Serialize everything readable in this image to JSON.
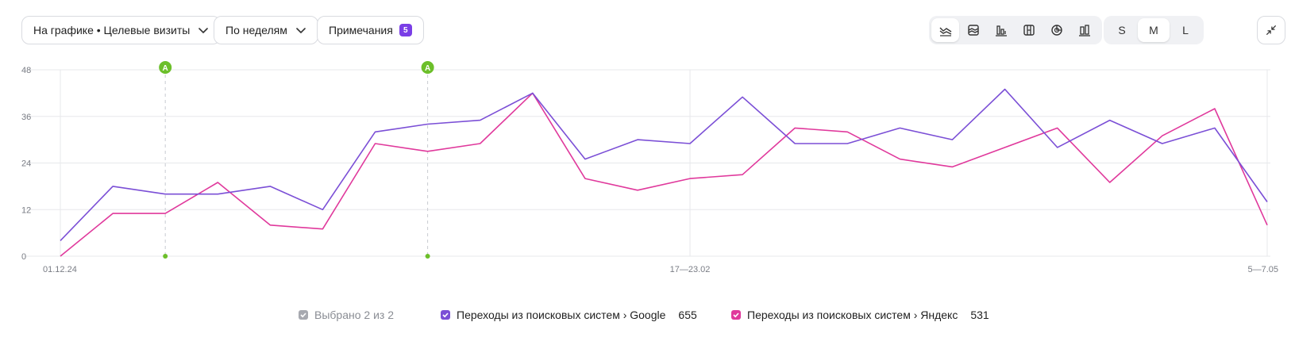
{
  "toolbar": {
    "metric_select": "На графике • Целевые визиты",
    "period_select": "По неделям",
    "notes_label": "Примечания",
    "notes_count": "5",
    "chart_types": [
      "lines-icon",
      "stacked-area-icon",
      "bar-chart-icon",
      "stacked-bar-icon",
      "pie-chart-icon",
      "column-chart-icon"
    ],
    "active_chart_type": 0,
    "sizes": [
      "S",
      "M",
      "L"
    ],
    "active_size": 1
  },
  "chart_data": {
    "type": "line",
    "x_tick_labels": [
      "01.12.24",
      "17—23.02",
      "5—7.05"
    ],
    "x_tick_index": [
      0,
      12,
      23
    ],
    "y_ticks": [
      0,
      12,
      24,
      36,
      48
    ],
    "ylim": [
      0,
      48
    ],
    "grid": true,
    "annotations": [
      {
        "index": 2,
        "label": "A"
      },
      {
        "index": 7,
        "label": "A"
      }
    ],
    "series": [
      {
        "name": "Переходы из поисковых систем › Google",
        "color": "#7b4fd6",
        "values": [
          4,
          18,
          16,
          16,
          18,
          12,
          32,
          34,
          35,
          42,
          25,
          30,
          29,
          41,
          29,
          29,
          33,
          30,
          43,
          28,
          35,
          29,
          33,
          14
        ]
      },
      {
        "name": "Переходы из поисковых систем › Яндекс",
        "color": "#e0399c",
        "values": [
          0,
          11,
          11,
          19,
          8,
          7,
          29,
          27,
          29,
          42,
          20,
          17,
          20,
          21,
          33,
          32,
          25,
          23,
          28,
          33,
          19,
          31,
          38,
          8
        ]
      }
    ]
  },
  "legend": {
    "selected_label": "Выбрано 2 из 2",
    "items": [
      {
        "label": "Переходы из поисковых систем › Google",
        "total": "655",
        "color": "#7b4fd6"
      },
      {
        "label": "Переходы из поисковых систем › Яндекс",
        "total": "531",
        "color": "#e0399c"
      }
    ]
  },
  "colors": {
    "annotation": "#6cbf2a",
    "grid": "#e7e8eb",
    "axis_text": "#7a7d85"
  }
}
